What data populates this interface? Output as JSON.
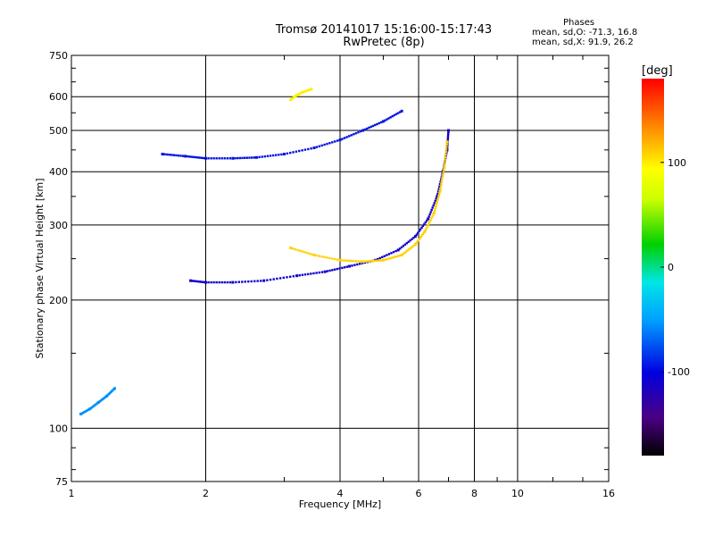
{
  "header": {
    "title": "Tromsø 20141017 15:16:00-15:17:43",
    "subtitle": "RwPretec (8p)",
    "phases_label": "Phases",
    "phases_o": "mean, sd,O: -71.3, 16.8",
    "phases_x": "mean, sd,X:  91.9, 26.2"
  },
  "colorbar": {
    "unit_label": "[deg]",
    "ticks": [
      {
        "value": 100,
        "label": "100"
      },
      {
        "value": 0,
        "label": "0"
      },
      {
        "value": -100,
        "label": "-100"
      }
    ],
    "vmin": -180,
    "vmax": 180
  },
  "chart_data": {
    "type": "scatter",
    "xlabel": "Frequency [MHz]",
    "ylabel": "Stationary phase Virtual Height [km]",
    "xscale": "log",
    "yscale": "log",
    "xlim": [
      1,
      16
    ],
    "ylim": [
      75,
      750
    ],
    "x_ticks": [
      1,
      2,
      4,
      6,
      8,
      10,
      16
    ],
    "y_ticks": [
      75,
      100,
      200,
      300,
      400,
      500,
      600,
      750
    ],
    "grid": true,
    "color_scale": "phase [deg]",
    "traces": [
      {
        "x": [
          1.85,
          2.0,
          2.3,
          2.7,
          3.2,
          3.7,
          4.2,
          4.8,
          5.4,
          5.9,
          6.3,
          6.6,
          6.8,
          6.95,
          7.0
        ],
        "y": [
          222,
          220,
          220,
          222,
          228,
          233,
          240,
          248,
          262,
          282,
          310,
          350,
          400,
          450,
          500
        ],
        "phase": -110
      },
      {
        "x": [
          3.1,
          3.5,
          4.0,
          4.5,
          5.0,
          5.5,
          5.9,
          6.2,
          6.5,
          6.7,
          6.85,
          6.95
        ],
        "y": [
          265,
          255,
          248,
          246,
          248,
          255,
          270,
          290,
          320,
          360,
          410,
          470
        ],
        "phase": 110
      },
      {
        "x": [
          1.6,
          1.8,
          2.0,
          2.3,
          2.6,
          3.0,
          3.5,
          4.0,
          4.5,
          5.0,
          5.5
        ],
        "y": [
          440,
          435,
          430,
          430,
          432,
          440,
          455,
          475,
          500,
          525,
          555
        ],
        "phase": -95
      },
      {
        "x": [
          1.05,
          1.1,
          1.15,
          1.2,
          1.25
        ],
        "y": [
          108,
          111,
          115,
          119,
          124
        ],
        "phase": -55
      },
      {
        "x": [
          3.1,
          3.2,
          3.3,
          3.45
        ],
        "y": [
          590,
          605,
          615,
          625
        ],
        "phase": 100
      }
    ]
  }
}
